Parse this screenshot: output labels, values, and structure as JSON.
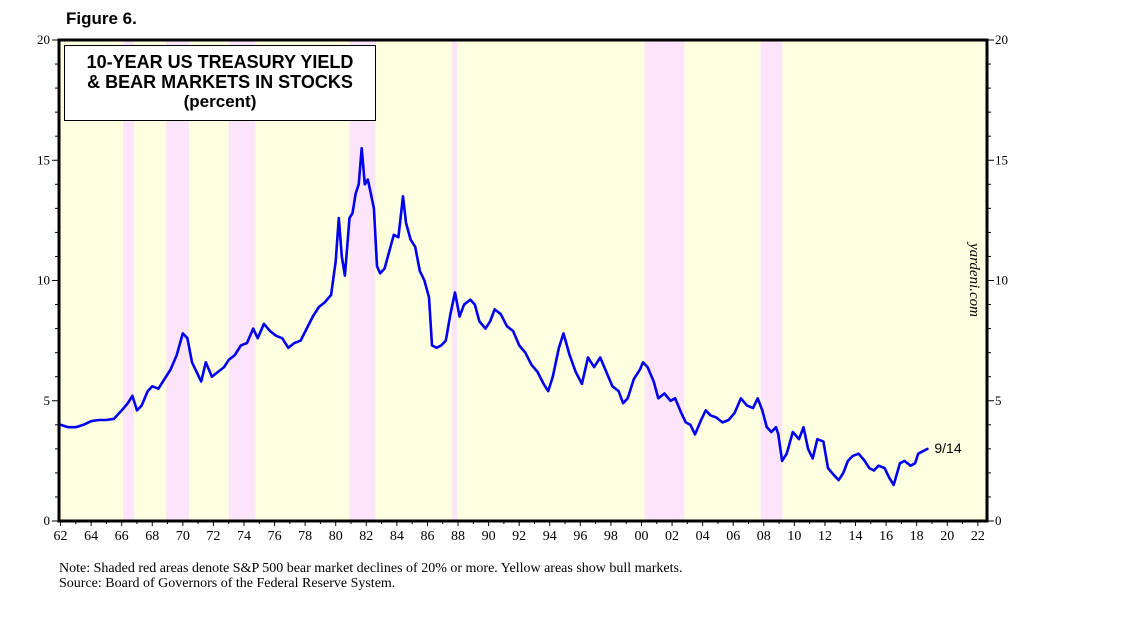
{
  "figure_label": "Figure 6.",
  "colors": {
    "bull": "#fefee0",
    "bear": "#fce4fa",
    "line": "#0000ee"
  },
  "chart_data": {
    "type": "line",
    "title": "10-YEAR US TREASURY YIELD",
    "title_line2": "& BEAR MARKETS IN STOCKS",
    "subtitle": "(percent)",
    "xlabel": "",
    "ylabel": "",
    "xlim": [
      1961.9,
      2022.6
    ],
    "ylim": [
      0,
      20
    ],
    "y_ticks": [
      0,
      5,
      10,
      15,
      20
    ],
    "x_ticks": [
      1962,
      1964,
      1966,
      1968,
      1970,
      1972,
      1974,
      1976,
      1978,
      1980,
      1982,
      1984,
      1986,
      1988,
      1990,
      1992,
      1994,
      1996,
      1998,
      2000,
      2002,
      2004,
      2006,
      2008,
      2010,
      2012,
      2014,
      2016,
      2018,
      2020,
      2022
    ],
    "x_tick_labels": [
      "62",
      "64",
      "66",
      "68",
      "70",
      "72",
      "74",
      "76",
      "78",
      "80",
      "82",
      "84",
      "86",
      "88",
      "90",
      "92",
      "94",
      "96",
      "98",
      "00",
      "02",
      "04",
      "06",
      "08",
      "10",
      "12",
      "14",
      "16",
      "18",
      "20",
      "22"
    ],
    "bear_markets": [
      [
        1966.1,
        1966.8
      ],
      [
        1968.9,
        1970.4
      ],
      [
        1973.0,
        1974.75
      ],
      [
        1980.9,
        1982.6
      ],
      [
        1987.6,
        1987.95
      ],
      [
        2000.2,
        2002.8
      ],
      [
        2007.8,
        2009.2
      ]
    ],
    "watermark": "yardeni.com",
    "end_label": "9/14",
    "series": [
      {
        "name": "10-Year US Treasury Yield",
        "x": [
          1962.0,
          1962.5,
          1963.0,
          1963.5,
          1964.0,
          1964.5,
          1965.0,
          1965.5,
          1966.0,
          1966.4,
          1966.7,
          1967.0,
          1967.3,
          1967.7,
          1968.0,
          1968.4,
          1968.8,
          1969.2,
          1969.6,
          1970.0,
          1970.3,
          1970.6,
          1970.9,
          1971.2,
          1971.5,
          1971.9,
          1972.3,
          1972.7,
          1973.0,
          1973.4,
          1973.8,
          1974.2,
          1974.6,
          1974.9,
          1975.3,
          1975.7,
          1976.1,
          1976.5,
          1976.9,
          1977.3,
          1977.7,
          1978.1,
          1978.5,
          1978.9,
          1979.3,
          1979.7,
          1980.0,
          1980.2,
          1980.4,
          1980.6,
          1980.9,
          1981.1,
          1981.3,
          1981.5,
          1981.7,
          1981.9,
          1982.1,
          1982.3,
          1982.5,
          1982.7,
          1982.9,
          1983.2,
          1983.5,
          1983.8,
          1984.1,
          1984.4,
          1984.6,
          1984.9,
          1985.2,
          1985.5,
          1985.8,
          1986.1,
          1986.3,
          1986.6,
          1986.9,
          1987.2,
          1987.5,
          1987.8,
          1988.1,
          1988.4,
          1988.8,
          1989.1,
          1989.4,
          1989.8,
          1990.1,
          1990.4,
          1990.8,
          1991.2,
          1991.6,
          1992.0,
          1992.4,
          1992.8,
          1993.2,
          1993.6,
          1993.9,
          1994.2,
          1994.6,
          1994.9,
          1995.3,
          1995.7,
          1996.1,
          1996.5,
          1996.9,
          1997.3,
          1997.7,
          1998.1,
          1998.5,
          1998.8,
          1999.1,
          1999.5,
          1999.9,
          2000.1,
          2000.4,
          2000.8,
          2001.1,
          2001.5,
          2001.9,
          2002.2,
          2002.6,
          2002.9,
          2003.2,
          2003.5,
          2003.9,
          2004.2,
          2004.5,
          2004.9,
          2005.3,
          2005.7,
          2006.1,
          2006.5,
          2006.9,
          2007.3,
          2007.6,
          2007.9,
          2008.2,
          2008.5,
          2008.8,
          2008.95,
          2009.2,
          2009.5,
          2009.9,
          2010.3,
          2010.6,
          2010.9,
          2011.2,
          2011.5,
          2011.9,
          2012.2,
          2012.6,
          2012.9,
          2013.2,
          2013.5,
          2013.8,
          2014.2,
          2014.6,
          2014.9,
          2015.2,
          2015.5,
          2015.9,
          2016.2,
          2016.5,
          2016.9,
          2017.2,
          2017.6,
          2017.9,
          2018.1,
          2018.4,
          2018.7
        ],
        "y": [
          4.0,
          3.9,
          3.9,
          4.0,
          4.15,
          4.2,
          4.2,
          4.25,
          4.6,
          4.9,
          5.2,
          4.6,
          4.8,
          5.4,
          5.6,
          5.5,
          5.9,
          6.3,
          6.9,
          7.8,
          7.6,
          6.6,
          6.2,
          5.8,
          6.6,
          6.0,
          6.2,
          6.4,
          6.7,
          6.9,
          7.3,
          7.4,
          8.0,
          7.6,
          8.2,
          7.9,
          7.7,
          7.6,
          7.2,
          7.4,
          7.5,
          8.0,
          8.5,
          8.9,
          9.1,
          9.4,
          10.8,
          12.6,
          11.0,
          10.2,
          12.6,
          12.8,
          13.6,
          14.0,
          15.5,
          14.0,
          14.2,
          13.6,
          13.0,
          10.6,
          10.3,
          10.5,
          11.2,
          11.9,
          11.8,
          13.5,
          12.4,
          11.7,
          11.4,
          10.4,
          10.0,
          9.3,
          7.3,
          7.2,
          7.3,
          7.5,
          8.6,
          9.5,
          8.5,
          9.0,
          9.2,
          9.0,
          8.3,
          8.0,
          8.3,
          8.8,
          8.6,
          8.1,
          7.9,
          7.3,
          7.0,
          6.5,
          6.2,
          5.7,
          5.4,
          6.0,
          7.2,
          7.8,
          6.9,
          6.2,
          5.7,
          6.8,
          6.4,
          6.8,
          6.2,
          5.6,
          5.4,
          4.9,
          5.1,
          5.9,
          6.3,
          6.6,
          6.4,
          5.8,
          5.1,
          5.3,
          5.0,
          5.1,
          4.5,
          4.1,
          4.0,
          3.6,
          4.2,
          4.6,
          4.4,
          4.3,
          4.1,
          4.2,
          4.5,
          5.1,
          4.8,
          4.7,
          5.1,
          4.6,
          3.9,
          3.7,
          3.9,
          3.6,
          2.5,
          2.8,
          3.7,
          3.4,
          3.9,
          3.0,
          2.6,
          3.4,
          3.3,
          2.2,
          1.9,
          1.7,
          2.0,
          2.5,
          2.7,
          2.8,
          2.5,
          2.2,
          2.1,
          2.3,
          2.2,
          1.8,
          1.5,
          2.4,
          2.5,
          2.3,
          2.4,
          2.8,
          2.9,
          3.0
        ]
      }
    ]
  },
  "note_line1": "Note: Shaded red areas denote S&P 500 bear market declines of 20% or more. Yellow areas show bull markets.",
  "note_line2": "Source: Board of Governors of the Federal Reserve System."
}
